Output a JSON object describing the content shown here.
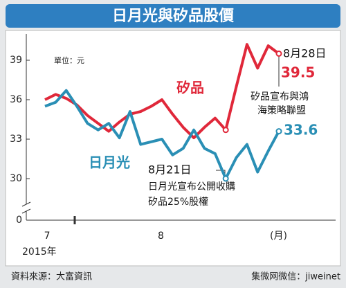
{
  "chart_data": {
    "type": "line",
    "title": "日月光與矽品股價",
    "unit_label": "單位：元",
    "xlabel": "(月)",
    "year_label": "2015年",
    "source": "資料來源：大富資訊",
    "watermark": "集微网微信：jiweinet",
    "xlim": [
      0,
      22
    ],
    "xticks": [
      {
        "value": 0.2,
        "label": "7"
      },
      {
        "value": 10.9,
        "label": "8"
      }
    ],
    "ylim": [
      0,
      41
    ],
    "ybreak": [
      0,
      27
    ],
    "yticks": [
      0,
      30,
      33,
      36,
      39
    ],
    "x": [
      0,
      1,
      2,
      3,
      4,
      5,
      6,
      7,
      8,
      9,
      10,
      11,
      12,
      13,
      14,
      15,
      16,
      17,
      18,
      19,
      20,
      21,
      22
    ],
    "series": [
      {
        "name": "矽品",
        "color": "#e0283a",
        "values": [
          36.0,
          36.4,
          36.1,
          35.6,
          34.8,
          34.2,
          33.6,
          34.3,
          34.9,
          35.1,
          35.5,
          36.0,
          34.9,
          33.9,
          33.1,
          33.9,
          34.6,
          33.7,
          37.0,
          40.2,
          38.4,
          40.1,
          39.5
        ]
      },
      {
        "name": "日月光",
        "color": "#2a8fb5",
        "values": [
          35.5,
          35.8,
          36.7,
          35.5,
          34.2,
          33.7,
          34.2,
          33.1,
          35.1,
          32.6,
          32.8,
          33.0,
          31.8,
          32.3,
          33.7,
          32.3,
          31.9,
          30.0,
          31.6,
          32.6,
          30.5,
          32.1,
          33.6
        ]
      }
    ],
    "annotations": [
      {
        "date": "8月28日",
        "lines": [
          "矽品宣布與鴻",
          "海策略聯盟"
        ]
      },
      {
        "date": "8月21日",
        "lines": [
          "日月光宣布公開收購",
          "矽品25%股權"
        ]
      }
    ]
  }
}
